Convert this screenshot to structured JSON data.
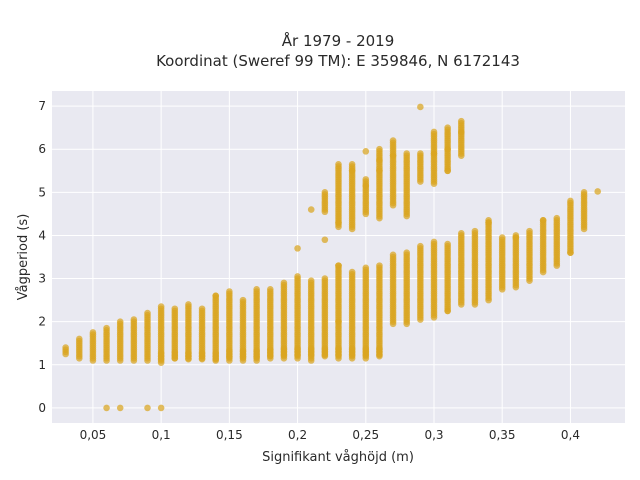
{
  "chart_data": {
    "type": "scatter",
    "title_line1": "År 1979 - 2019",
    "title_line2": "Koordinat (Sweref 99 TM): E 359846, N 6172143",
    "xlabel": "Signifikant våghöjd (m)",
    "ylabel": "Vågperiod (s)",
    "xlim": [
      0.02,
      0.44
    ],
    "ylim": [
      -0.35,
      7.35
    ],
    "x_ticks": [
      0.05,
      0.1,
      0.15,
      0.2,
      0.25,
      0.3,
      0.35,
      0.4
    ],
    "x_tick_labels": [
      "0,05",
      "0,1",
      "0,15",
      "0,2",
      "0,25",
      "0,3",
      "0,35",
      "0,4"
    ],
    "y_ticks": [
      0,
      1,
      2,
      3,
      4,
      5,
      6,
      7
    ],
    "y_tick_labels": [
      "0",
      "1",
      "2",
      "3",
      "4",
      "5",
      "6",
      "7"
    ],
    "grid": true,
    "background": "#e9e9f1",
    "marker_color": "#daa520",
    "columns": [
      {
        "x": 0.03,
        "y_min": 1.25,
        "y_max": 1.42
      },
      {
        "x": 0.04,
        "y_min": 1.15,
        "y_max": 1.6
      },
      {
        "x": 0.05,
        "y_min": 1.1,
        "y_max": 1.75
      },
      {
        "x": 0.06,
        "y_min": 1.1,
        "y_max": 1.85
      },
      {
        "x": 0.07,
        "y_min": 1.1,
        "y_max": 2.0
      },
      {
        "x": 0.08,
        "y_min": 1.1,
        "y_max": 2.05
      },
      {
        "x": 0.09,
        "y_min": 1.1,
        "y_max": 2.2
      },
      {
        "x": 0.1,
        "y_min": 1.05,
        "y_max": 2.35
      },
      {
        "x": 0.11,
        "y_min": 1.15,
        "y_max": 2.3
      },
      {
        "x": 0.12,
        "y_min": 1.15,
        "y_max": 2.4
      },
      {
        "x": 0.13,
        "y_min": 1.15,
        "y_max": 2.3
      },
      {
        "x": 0.14,
        "y_min": 1.1,
        "y_max": 2.6
      },
      {
        "x": 0.15,
        "y_min": 1.1,
        "y_max": 2.7
      },
      {
        "x": 0.16,
        "y_min": 1.1,
        "y_max": 2.5
      },
      {
        "x": 0.17,
        "y_min": 1.1,
        "y_max": 2.75
      },
      {
        "x": 0.18,
        "y_min": 1.15,
        "y_max": 2.75
      },
      {
        "x": 0.19,
        "y_min": 1.15,
        "y_max": 2.9
      },
      {
        "x": 0.2,
        "y_min": 1.15,
        "y_max": 3.05
      },
      {
        "x": 0.21,
        "y_min": 1.1,
        "y_max": 2.95
      },
      {
        "x": 0.22,
        "y_min": 1.2,
        "y_max": 3.0
      },
      {
        "x": 0.23,
        "y_min": 1.15,
        "y_max": 3.3
      },
      {
        "x": 0.24,
        "y_min": 1.15,
        "y_max": 3.15
      },
      {
        "x": 0.25,
        "y_min": 1.15,
        "y_max": 3.25
      },
      {
        "x": 0.26,
        "y_min": 1.2,
        "y_max": 3.3
      },
      {
        "x": 0.27,
        "y_min": 1.95,
        "y_max": 3.55
      },
      {
        "x": 0.28,
        "y_min": 1.95,
        "y_max": 3.6
      },
      {
        "x": 0.29,
        "y_min": 2.05,
        "y_max": 3.75
      },
      {
        "x": 0.3,
        "y_min": 2.1,
        "y_max": 3.85
      },
      {
        "x": 0.31,
        "y_min": 2.25,
        "y_max": 3.8
      },
      {
        "x": 0.32,
        "y_min": 2.4,
        "y_max": 4.05
      },
      {
        "x": 0.33,
        "y_min": 2.4,
        "y_max": 4.1
      },
      {
        "x": 0.34,
        "y_min": 2.5,
        "y_max": 4.35
      },
      {
        "x": 0.35,
        "y_min": 2.75,
        "y_max": 3.95
      },
      {
        "x": 0.36,
        "y_min": 2.8,
        "y_max": 4.0
      },
      {
        "x": 0.37,
        "y_min": 2.95,
        "y_max": 4.1
      },
      {
        "x": 0.38,
        "y_min": 3.15,
        "y_max": 4.35
      },
      {
        "x": 0.39,
        "y_min": 3.3,
        "y_max": 4.4
      },
      {
        "x": 0.4,
        "y_min": 3.6,
        "y_max": 4.8
      },
      {
        "x": 0.41,
        "y_min": 4.15,
        "y_max": 5.0
      }
    ],
    "upper_cluster": [
      {
        "x": 0.22,
        "y_min": 4.55,
        "y_max": 5.0
      },
      {
        "x": 0.23,
        "y_min": 4.2,
        "y_max": 5.65
      },
      {
        "x": 0.24,
        "y_min": 4.2,
        "y_max": 5.65
      },
      {
        "x": 0.25,
        "y_min": 4.5,
        "y_max": 5.3
      },
      {
        "x": 0.26,
        "y_min": 4.4,
        "y_max": 6.0
      },
      {
        "x": 0.27,
        "y_min": 4.7,
        "y_max": 6.2
      },
      {
        "x": 0.28,
        "y_min": 4.5,
        "y_max": 5.9
      },
      {
        "x": 0.29,
        "y_min": 5.25,
        "y_max": 5.9
      },
      {
        "x": 0.3,
        "y_min": 5.2,
        "y_max": 6.4
      },
      {
        "x": 0.31,
        "y_min": 5.5,
        "y_max": 6.5
      },
      {
        "x": 0.32,
        "y_min": 5.85,
        "y_max": 6.65
      }
    ],
    "lower_band": [
      {
        "x": 0.1,
        "y": 1.2
      },
      {
        "x": 0.11,
        "y": 1.22
      },
      {
        "x": 0.12,
        "y": 1.2
      },
      {
        "x": 0.13,
        "y": 1.2
      },
      {
        "x": 0.14,
        "y": 1.2
      },
      {
        "x": 0.15,
        "y": 1.25
      },
      {
        "x": 0.16,
        "y": 1.25
      },
      {
        "x": 0.17,
        "y": 1.25
      },
      {
        "x": 0.18,
        "y": 1.28
      },
      {
        "x": 0.19,
        "y": 1.3
      },
      {
        "x": 0.2,
        "y": 1.3
      },
      {
        "x": 0.21,
        "y": 1.3
      },
      {
        "x": 0.22,
        "y": 1.3
      },
      {
        "x": 0.23,
        "y": 1.3
      },
      {
        "x": 0.24,
        "y": 1.3
      },
      {
        "x": 0.25,
        "y": 1.3
      },
      {
        "x": 0.26,
        "y": 1.3
      }
    ],
    "extra_points": [
      [
        0.06,
        0.0
      ],
      [
        0.07,
        0.0
      ],
      [
        0.09,
        0.0
      ],
      [
        0.1,
        0.0
      ],
      [
        0.2,
        3.7
      ],
      [
        0.21,
        4.6
      ],
      [
        0.22,
        3.9
      ],
      [
        0.23,
        3.3
      ],
      [
        0.23,
        4.3
      ],
      [
        0.24,
        5.5
      ],
      [
        0.24,
        4.15
      ],
      [
        0.25,
        5.95
      ],
      [
        0.25,
        5.15
      ],
      [
        0.26,
        5.5
      ],
      [
        0.26,
        5.75
      ],
      [
        0.27,
        5.85
      ],
      [
        0.28,
        4.45
      ],
      [
        0.29,
        6.98
      ],
      [
        0.3,
        5.9
      ],
      [
        0.31,
        6.0
      ],
      [
        0.31,
        5.5
      ],
      [
        0.32,
        6.4
      ],
      [
        0.31,
        2.25
      ],
      [
        0.34,
        4.3
      ],
      [
        0.36,
        3.95
      ],
      [
        0.38,
        4.35
      ],
      [
        0.4,
        3.6
      ],
      [
        0.42,
        5.02
      ],
      [
        0.14,
        2.6
      ],
      [
        0.23,
        2.0
      ]
    ]
  }
}
